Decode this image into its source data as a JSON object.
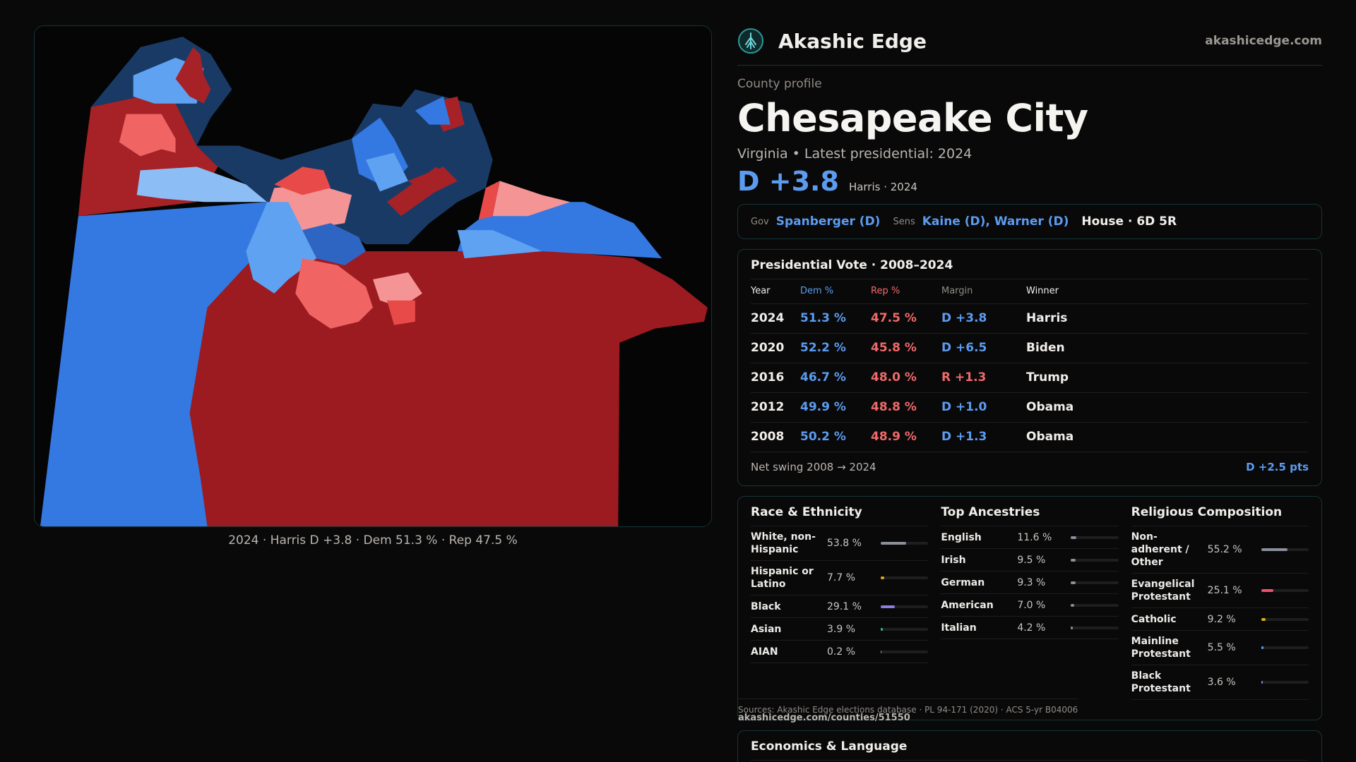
{
  "brand": {
    "name": "Akashic Edge",
    "domain": "akashicedge.com",
    "logo_icon": "tree-icon"
  },
  "county": {
    "eyebrow": "County profile",
    "name": "Chesapeake City",
    "subtitle": "Virginia • Latest presidential: 2024",
    "margin": "D +3.8",
    "margin_note": "Harris · 2024"
  },
  "officials": {
    "gov_label": "Gov",
    "gov": "Spanberger (D)",
    "sens_label": "Sens",
    "sens": "Kaine (D), Warner (D)",
    "house": "House · 6D 5R"
  },
  "votes": {
    "title": "Presidential Vote · 2008–2024",
    "headers": [
      "Year",
      "Dem %",
      "Rep %",
      "Margin",
      "Winner"
    ],
    "rows": [
      {
        "year": "2024",
        "dem": "51.3 %",
        "rep": "47.5 %",
        "margin": "D +3.8",
        "winner": "Harris"
      },
      {
        "year": "2020",
        "dem": "52.2 %",
        "rep": "45.8 %",
        "margin": "D +6.5",
        "winner": "Biden"
      },
      {
        "year": "2016",
        "dem": "46.7 %",
        "rep": "48.0 %",
        "margin": "R +1.3",
        "winner": "Trump"
      },
      {
        "year": "2012",
        "dem": "49.9 %",
        "rep": "48.8 %",
        "margin": "D +1.0",
        "winner": "Obama"
      },
      {
        "year": "2008",
        "dem": "50.2 %",
        "rep": "48.9 %",
        "margin": "D +1.3",
        "winner": "Obama"
      }
    ],
    "swing_label": "Net swing 2008 → 2024",
    "swing_value": "D +2.5 pts"
  },
  "race": {
    "title": "Race & Ethnicity",
    "items": [
      {
        "label": "White, non-Hispanic",
        "pct": "53.8 %",
        "value": 53.8,
        "color": "#8a8f9a"
      },
      {
        "label": "Hispanic or Latino",
        "pct": "7.7 %",
        "value": 7.7,
        "color": "#e6a817"
      },
      {
        "label": "Black",
        "pct": "29.1 %",
        "value": 29.1,
        "color": "#8b7ee0"
      },
      {
        "label": "Asian",
        "pct": "3.9 %",
        "value": 3.9,
        "color": "#2fbf7f"
      },
      {
        "label": "AIAN",
        "pct": "0.2 %",
        "value": 0.2,
        "color": "#8a8f9a"
      }
    ]
  },
  "ancestry": {
    "title": "Top Ancestries",
    "items": [
      {
        "label": "English",
        "pct": "11.6 %",
        "value": 11.6,
        "color": "#8a8f9a"
      },
      {
        "label": "Irish",
        "pct": "9.5 %",
        "value": 9.5,
        "color": "#8a8f9a"
      },
      {
        "label": "German",
        "pct": "9.3 %",
        "value": 9.3,
        "color": "#8a8f9a"
      },
      {
        "label": "American",
        "pct": "7.0 %",
        "value": 7.0,
        "color": "#8a8f9a"
      },
      {
        "label": "Italian",
        "pct": "4.2 %",
        "value": 4.2,
        "color": "#8a8f9a"
      }
    ]
  },
  "religion": {
    "title": "Religious Composition",
    "items": [
      {
        "label": "Non-adherent / Other",
        "pct": "55.2 %",
        "value": 55.2,
        "color": "#8a8f9a"
      },
      {
        "label": "Evangelical Protestant",
        "pct": "25.1 %",
        "value": 25.1,
        "color": "#f0506a"
      },
      {
        "label": "Catholic",
        "pct": "9.2 %",
        "value": 9.2,
        "color": "#e6a817"
      },
      {
        "label": "Mainline Protestant",
        "pct": "5.5 %",
        "value": 5.5,
        "color": "#5b9cf0"
      },
      {
        "label": "Black Protestant",
        "pct": "3.6 %",
        "value": 3.6,
        "color": "#8b7ee0"
      }
    ]
  },
  "sources": {
    "text": "Sources: Akashic Edge elections database · PL 94-171 (2020) · ACS 5-yr B04006",
    "url": "akashicedge.com/counties/51550"
  },
  "economics": {
    "title": "Economics & Language"
  },
  "map": {
    "caption": "2024 · Harris D +3.8 · Dem 51.3 % · Rep 47.5 %",
    "colors": {
      "dark_red": "#9b1b20",
      "red": "#a72226",
      "light_red": "#f06464",
      "pale_red": "#f49494",
      "dark_blue": "#1a3a66",
      "blue": "#3478e2",
      "mid_blue": "#2f65c2",
      "light_blue": "#5fa2f2",
      "pale_blue": "#8dbdf5"
    }
  }
}
